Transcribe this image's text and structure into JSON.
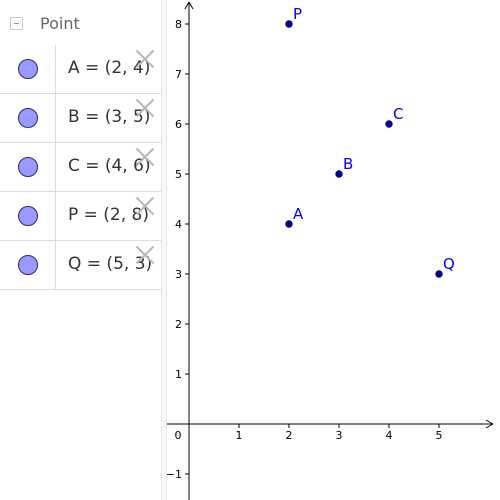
{
  "algebra": {
    "group_label": "Point",
    "items": [
      {
        "text": "A = (2, 4)"
      },
      {
        "text": "B = (3, 5)"
      },
      {
        "text": "C = (4, 6)"
      },
      {
        "text": "P = (2, 8)"
      },
      {
        "text": "Q = (5, 3)"
      }
    ]
  },
  "graph": {
    "x_ticks": [
      {
        "value": 0,
        "label": "0"
      },
      {
        "value": 1,
        "label": "1"
      },
      {
        "value": 2,
        "label": "2"
      },
      {
        "value": 3,
        "label": "3"
      },
      {
        "value": 4,
        "label": "4"
      },
      {
        "value": 5,
        "label": "5"
      }
    ],
    "y_ticks": [
      {
        "value": -1,
        "label": "−1"
      },
      {
        "value": 1,
        "label": "1"
      },
      {
        "value": 2,
        "label": "2"
      },
      {
        "value": 3,
        "label": "3"
      },
      {
        "value": 4,
        "label": "4"
      },
      {
        "value": 5,
        "label": "5"
      },
      {
        "value": 6,
        "label": "6"
      },
      {
        "value": 7,
        "label": "7"
      },
      {
        "value": 8,
        "label": "8"
      }
    ],
    "points": [
      {
        "name": "A",
        "x": 2,
        "y": 4
      },
      {
        "name": "B",
        "x": 3,
        "y": 5
      },
      {
        "name": "C",
        "x": 4,
        "y": 6
      },
      {
        "name": "P",
        "x": 2,
        "y": 8
      },
      {
        "name": "Q",
        "x": 5,
        "y": 3
      }
    ],
    "point_color": "#00008b",
    "label_color": "#0000ff"
  }
}
